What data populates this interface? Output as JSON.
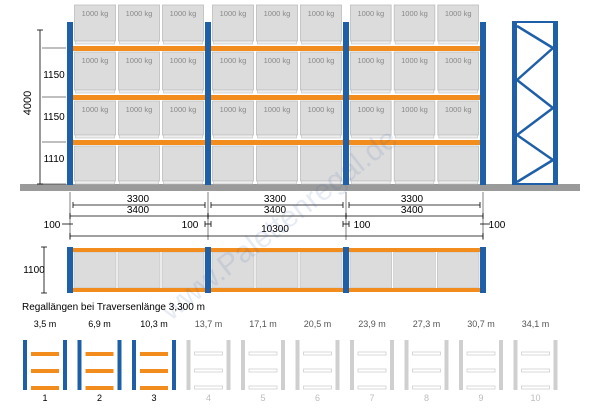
{
  "colors": {
    "upright": "#1f5fa8",
    "beam": "#f28c1c",
    "box": "#dcdcdc",
    "box_stroke": "#bdbdbd",
    "floor": "#9a9a9a",
    "dim": "#000000",
    "inactive": "#cfcfcf",
    "watermark": "#3a64a8"
  },
  "elevation": {
    "total_height": "4000",
    "levels": [
      "1150",
      "1150",
      "1110"
    ],
    "load_label": "1000 kg"
  },
  "dimensions": {
    "beam_spans": [
      "3300",
      "3300",
      "3300"
    ],
    "bay_spans": [
      "3400",
      "3400",
      "3400"
    ],
    "offset_inner": "100",
    "total_length": "10300",
    "overhang_left": "100",
    "overhang_right": "100",
    "depth": "1100"
  },
  "watermark": "www.Palettenregal.de",
  "lengths": {
    "title": "Regallängen bei Traversenlänge 3,300 m",
    "items": [
      {
        "length": "3,5 m",
        "num": "1",
        "active": true
      },
      {
        "length": "6,9 m",
        "num": "2",
        "active": true
      },
      {
        "length": "10,3 m",
        "num": "3",
        "active": true
      },
      {
        "length": "13,7 m",
        "num": "4",
        "active": false
      },
      {
        "length": "17,1 m",
        "num": "5",
        "active": false
      },
      {
        "length": "20,5 m",
        "num": "6",
        "active": false
      },
      {
        "length": "23,9 m",
        "num": "7",
        "active": false
      },
      {
        "length": "27,3 m",
        "num": "8",
        "active": false
      },
      {
        "length": "30,7 m",
        "num": "9",
        "active": false
      },
      {
        "length": "34,1 m",
        "num": "10",
        "active": false
      }
    ]
  }
}
